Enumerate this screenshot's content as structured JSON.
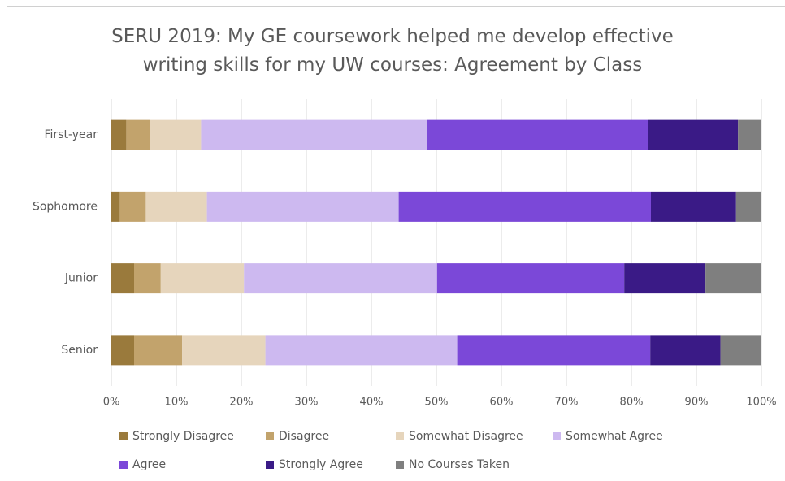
{
  "chart_data": {
    "type": "stacked_barh",
    "title": "SERU 2019: My GE coursework helped me develop effective writing skills for my UW courses: Agreement by Class",
    "categories": [
      "First-year",
      "Sophomore",
      "Junior",
      "Senior"
    ],
    "series": [
      {
        "name": "Strongly Disagree",
        "color": "#9a7a3c",
        "values": [
          2.3,
          1.3,
          3.5,
          3.5
        ]
      },
      {
        "name": "Disagree",
        "color": "#c2a36c",
        "values": [
          3.6,
          4.0,
          4.1,
          7.4
        ]
      },
      {
        "name": "Somewhat Disagree",
        "color": "#e6d5bc",
        "values": [
          7.9,
          9.4,
          12.8,
          12.8
        ]
      },
      {
        "name": "Somewhat Agree",
        "color": "#cdb9f0",
        "values": [
          34.8,
          29.5,
          29.7,
          29.5
        ]
      },
      {
        "name": "Agree",
        "color": "#7b48d8",
        "values": [
          34.0,
          38.8,
          28.8,
          29.7
        ]
      },
      {
        "name": "Strongly Agree",
        "color": "#3a1a86",
        "values": [
          13.8,
          13.1,
          12.5,
          10.8
        ]
      },
      {
        "name": "No Courses Taken",
        "color": "#7f7f7f",
        "values": [
          3.6,
          3.9,
          8.6,
          6.3
        ]
      }
    ],
    "xlim": [
      0,
      100
    ],
    "xticks": [
      {
        "value": 0,
        "label": "0%"
      },
      {
        "value": 10,
        "label": "10%"
      },
      {
        "value": 20,
        "label": "20%"
      },
      {
        "value": 30,
        "label": "30%"
      },
      {
        "value": 40,
        "label": "40%"
      },
      {
        "value": 50,
        "label": "50%"
      },
      {
        "value": 60,
        "label": "60%"
      },
      {
        "value": 70,
        "label": "70%"
      },
      {
        "value": 80,
        "label": "80%"
      },
      {
        "value": 90,
        "label": "90%"
      },
      {
        "value": 100,
        "label": "100%"
      }
    ],
    "grid": true
  }
}
